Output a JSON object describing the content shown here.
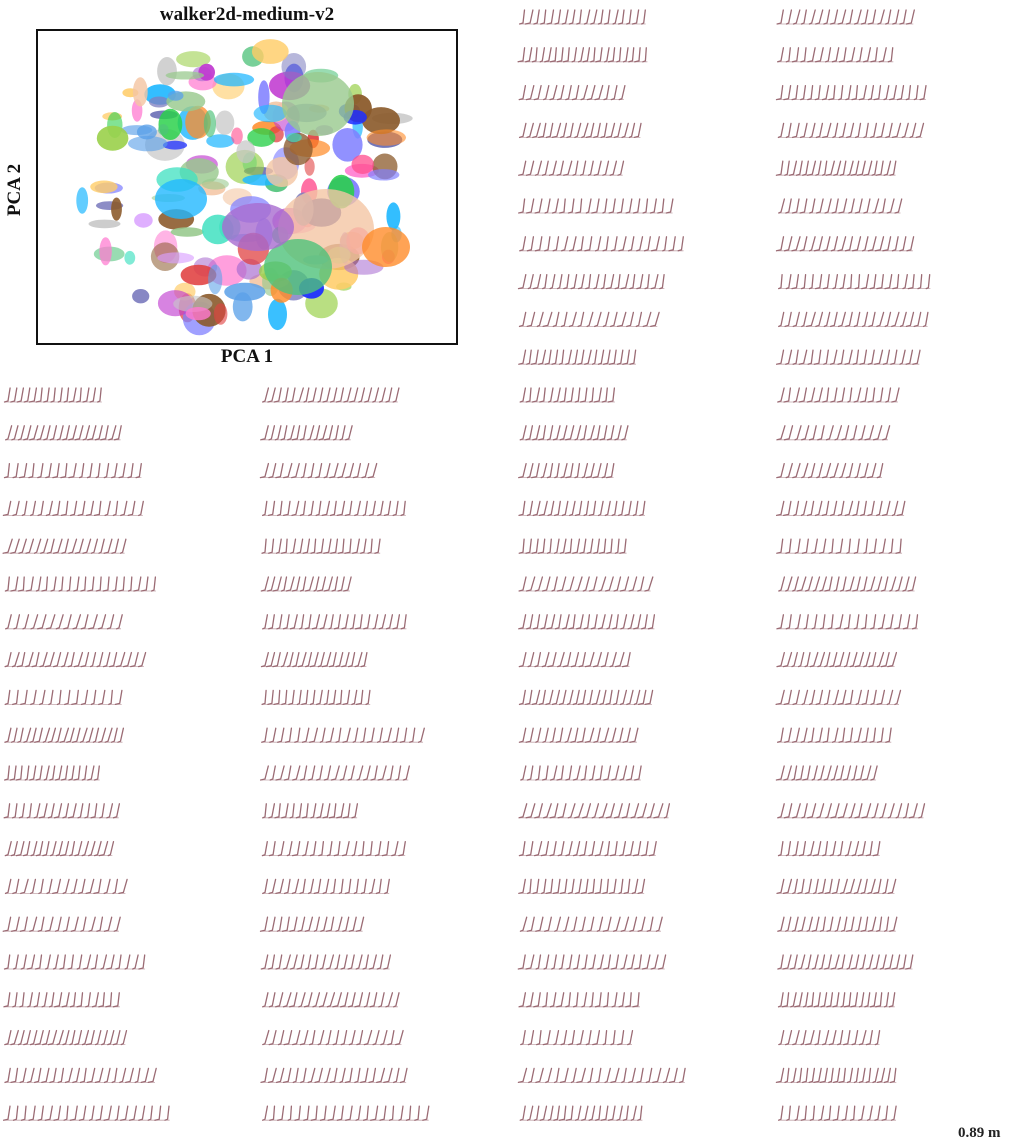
{
  "chart_data": [
    {
      "type": "scatter",
      "title": "walker2d-medium-v2",
      "xlabel": "PCA 1",
      "ylabel": "PCA 2",
      "grid": false,
      "legend": "none",
      "series_colors": [
        "#98c98d",
        "#a86bd0",
        "#f4c6a4",
        "#4fc27a",
        "#ff8c2a",
        "#ffcc66",
        "#5aa0e8",
        "#3a3f9e",
        "#e04040",
        "#ff7ad0",
        "#3ee0c0",
        "#8b5a2b",
        "#8080c0",
        "#c6c6c6",
        "#22b8ff",
        "#c03ad0",
        "#9ad04a",
        "#7f7fff",
        "#ff4f8f",
        "#2ad04a",
        "#d9a0ff",
        "#1e2fff"
      ]
    },
    {
      "type": "trajectory_strips",
      "figure_color": "#9b6b74",
      "scale_label": "0.89 m"
    }
  ]
}
